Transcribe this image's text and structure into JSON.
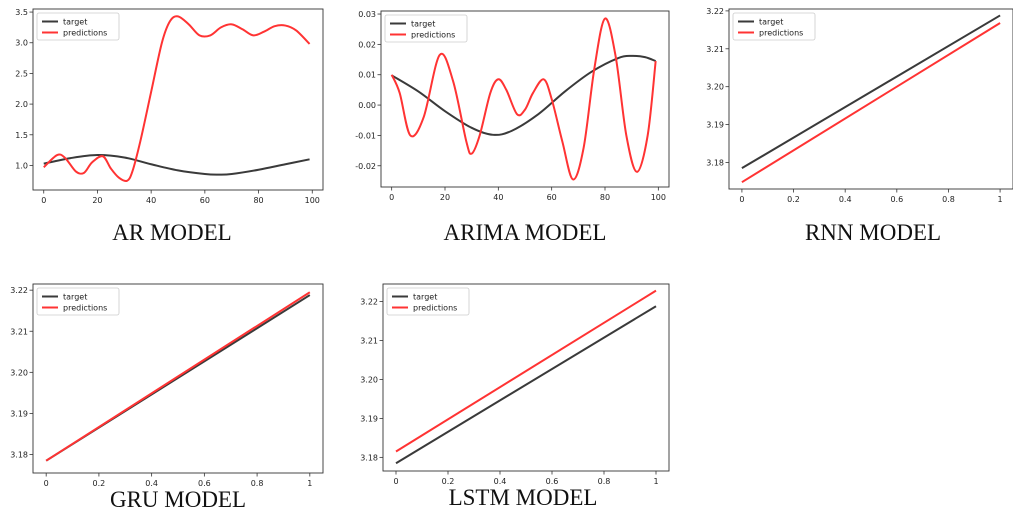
{
  "chart_data": [
    {
      "type": "line",
      "caption": "AR MODEL",
      "xlim": [
        -4,
        104
      ],
      "ylim": [
        0.6,
        3.55
      ],
      "xticks": [
        0,
        20,
        40,
        60,
        80,
        100
      ],
      "yticks": [
        1.0,
        1.5,
        2.0,
        2.5,
        3.0,
        3.5
      ],
      "ytick_labels": [
        "1.0",
        "1.5",
        "2.0",
        "2.5",
        "3.0",
        "3.5"
      ],
      "legend": "top-left",
      "grid": false,
      "series": [
        {
          "name": "target",
          "color": "#3a3a3a",
          "x": [
            0,
            10,
            20,
            30,
            40,
            50,
            60,
            65,
            70,
            80,
            90,
            99
          ],
          "y": [
            1.03,
            1.12,
            1.17,
            1.13,
            1.02,
            0.92,
            0.86,
            0.85,
            0.86,
            0.93,
            1.02,
            1.1
          ]
        },
        {
          "name": "predictions",
          "color": "#ff3333",
          "x": [
            0,
            5,
            8,
            12,
            15,
            18,
            22,
            25,
            28,
            31,
            33,
            36,
            40,
            44,
            47,
            50,
            54,
            58,
            62,
            66,
            70,
            74,
            78,
            82,
            86,
            90,
            94,
            99
          ],
          "y": [
            0.97,
            1.17,
            1.12,
            0.9,
            0.88,
            1.05,
            1.15,
            0.95,
            0.8,
            0.75,
            0.9,
            1.4,
            2.2,
            3.0,
            3.35,
            3.43,
            3.3,
            3.12,
            3.12,
            3.25,
            3.3,
            3.22,
            3.12,
            3.18,
            3.27,
            3.28,
            3.2,
            2.98
          ]
        }
      ]
    },
    {
      "type": "line",
      "caption": "ARIMA MODEL",
      "xlim": [
        -4,
        104
      ],
      "ylim": [
        -0.027,
        0.031
      ],
      "xticks": [
        0,
        20,
        40,
        60,
        80,
        100
      ],
      "yticks": [
        -0.02,
        -0.01,
        0.0,
        0.01,
        0.02,
        0.03
      ],
      "ytick_labels": [
        "-0.02",
        "-0.01",
        "0.00",
        "0.01",
        "0.02",
        "0.03"
      ],
      "legend": "top-left",
      "grid": false,
      "series": [
        {
          "name": "target",
          "color": "#3a3a3a",
          "x": [
            0,
            10,
            20,
            30,
            38,
            45,
            55,
            65,
            75,
            85,
            90,
            95,
            99
          ],
          "y": [
            0.0098,
            0.0045,
            -0.002,
            -0.0075,
            -0.0098,
            -0.0085,
            -0.003,
            0.0045,
            0.011,
            0.0155,
            0.0162,
            0.0158,
            0.0145
          ]
        },
        {
          "name": "predictions",
          "color": "#ff3333",
          "x": [
            0,
            3,
            7,
            12,
            18,
            23,
            28,
            30,
            33,
            37,
            40,
            43,
            47,
            50,
            53,
            57,
            60,
            64,
            68,
            72,
            76,
            80,
            84,
            88,
            92,
            96,
            99
          ],
          "y": [
            0.01,
            0.004,
            -0.01,
            -0.004,
            0.0165,
            0.008,
            -0.012,
            -0.016,
            -0.01,
            0.004,
            0.0085,
            0.005,
            -0.003,
            -0.0015,
            0.004,
            0.0085,
            0.002,
            -0.012,
            -0.0245,
            -0.014,
            0.012,
            0.0285,
            0.016,
            -0.01,
            -0.022,
            -0.01,
            0.0145
          ]
        }
      ]
    },
    {
      "type": "line",
      "caption": "RNN MODEL",
      "xlim": [
        -0.05,
        1.05
      ],
      "ylim": [
        3.173,
        3.2205
      ],
      "xticks": [
        0.0,
        0.2,
        0.4,
        0.6,
        0.8,
        1.0
      ],
      "yticks": [
        3.18,
        3.19,
        3.2,
        3.21,
        3.22
      ],
      "ytick_labels": [
        "3.18",
        "3.19",
        "3.20",
        "3.21",
        "3.22"
      ],
      "legend": "top-left",
      "grid": false,
      "series": [
        {
          "name": "target",
          "color": "#3a3a3a",
          "x": [
            0.0,
            1.0
          ],
          "y": [
            3.1785,
            3.2188
          ]
        },
        {
          "name": "predictions",
          "color": "#ff3333",
          "x": [
            0.0,
            1.0
          ],
          "y": [
            3.1748,
            3.2168
          ]
        }
      ]
    },
    {
      "type": "line",
      "caption": "GRU MODEL",
      "xlim": [
        -0.05,
        1.05
      ],
      "ylim": [
        3.1755,
        3.2215
      ],
      "xticks": [
        0.0,
        0.2,
        0.4,
        0.6,
        0.8,
        1.0
      ],
      "yticks": [
        3.18,
        3.19,
        3.2,
        3.21,
        3.22
      ],
      "ytick_labels": [
        "3.18",
        "3.19",
        "3.20",
        "3.21",
        "3.22"
      ],
      "legend": "top-left",
      "grid": false,
      "series": [
        {
          "name": "target",
          "color": "#3a3a3a",
          "x": [
            0.0,
            1.0
          ],
          "y": [
            3.1785,
            3.2188
          ]
        },
        {
          "name": "predictions",
          "color": "#ff3333",
          "x": [
            0.0,
            1.0
          ],
          "y": [
            3.1785,
            3.2195
          ]
        }
      ]
    },
    {
      "type": "line",
      "caption": "LSTM MODEL",
      "xlim": [
        -0.05,
        1.05
      ],
      "ylim": [
        3.1765,
        3.2245
      ],
      "xticks": [
        0.0,
        0.2,
        0.4,
        0.6,
        0.8,
        1.0
      ],
      "yticks": [
        3.18,
        3.19,
        3.2,
        3.21,
        3.22
      ],
      "ytick_labels": [
        "3.18",
        "3.19",
        "3.20",
        "3.21",
        "3.22"
      ],
      "legend": "top-left",
      "grid": false,
      "series": [
        {
          "name": "target",
          "color": "#3a3a3a",
          "x": [
            0.0,
            1.0
          ],
          "y": [
            3.1785,
            3.2188
          ]
        },
        {
          "name": "predictions",
          "color": "#ff3333",
          "x": [
            0.0,
            1.0
          ],
          "y": [
            3.1815,
            3.2228
          ]
        }
      ]
    }
  ]
}
